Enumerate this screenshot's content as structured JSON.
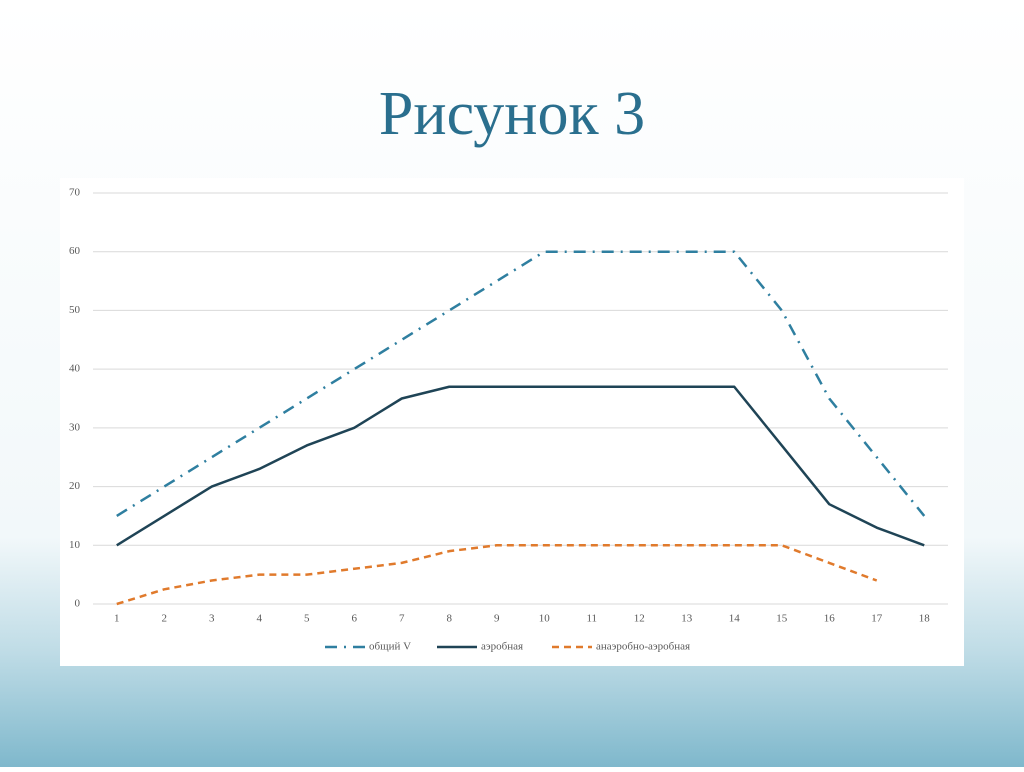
{
  "chart_data": {
    "type": "line",
    "title": "Рисунок 3",
    "categories": [
      "1",
      "2",
      "3",
      "4",
      "5",
      "6",
      "7",
      "8",
      "9",
      "10",
      "11",
      "12",
      "13",
      "14",
      "15",
      "16",
      "17",
      "18"
    ],
    "series": [
      {
        "name": "общий V",
        "color": "#2f7fa0",
        "dash": "dashdot",
        "values": [
          15,
          20,
          25,
          30,
          35,
          40,
          45,
          50,
          55,
          60,
          60,
          60,
          60,
          60,
          50,
          35,
          25,
          15
        ]
      },
      {
        "name": "аэробная",
        "color": "#1f4456",
        "dash": "solid",
        "values": [
          10,
          15,
          20,
          23,
          27,
          30,
          35,
          37,
          37,
          37,
          37,
          37,
          37,
          37,
          27,
          17,
          13,
          10
        ]
      },
      {
        "name": "анаэробно-аэробная",
        "color": "#e07a2c",
        "dash": "dashed",
        "values": [
          0,
          2.5,
          4,
          5,
          5,
          6,
          7,
          9,
          10,
          10,
          10,
          10,
          10,
          10,
          10,
          7,
          4,
          null
        ]
      }
    ],
    "ylim": [
      0,
      70
    ],
    "yticks": [
      0,
      10,
      20,
      30,
      40,
      50,
      60,
      70
    ],
    "grid": true,
    "legend": "bottom"
  }
}
